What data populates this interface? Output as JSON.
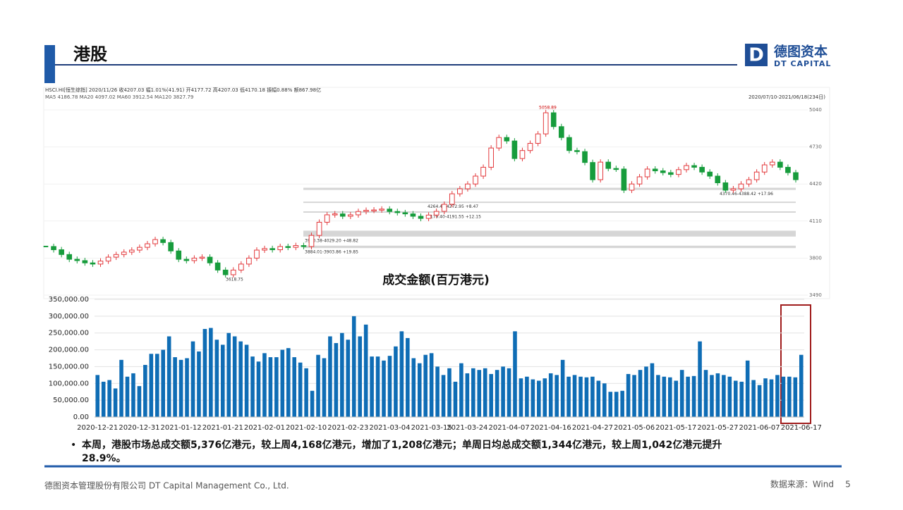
{
  "header": {
    "title": "港股",
    "logo_cn": "德图资本",
    "logo_en": "DT CAPITAL",
    "logo_mark": "D"
  },
  "chart_data": [
    {
      "type": "candlestick",
      "info_line": "HSCI.HI[恒生综指]  2020/11/26  收4207.03  幅1.01%(41.91)  开4177.72  高4207.03  低4170.18  振幅0.88%  额867.98亿",
      "ma_line": "MA5 4186.78  MA20 4097.02  MA60 3912.54  MA120 3827.79",
      "range_label": "2020/07/10-2021/06/18(234日)",
      "values": [
        3897,
        3870,
        3830,
        3790,
        3779,
        3760,
        3750,
        3775,
        3808,
        3830,
        3850,
        3867,
        3890,
        3920,
        3955,
        3930,
        3860,
        3790,
        3779,
        3800,
        3808,
        3760,
        3700,
        3661,
        3700,
        3750,
        3800,
        3867,
        3880,
        3870,
        3897,
        3890,
        3905,
        3897,
        3990,
        4100,
        4162,
        4170,
        4150,
        4162,
        4190,
        4200,
        4203,
        4210,
        4190,
        4180,
        4170,
        4150,
        4132,
        4160,
        4191,
        4250,
        4338,
        4380,
        4420,
        4486,
        4560,
        4721,
        4809,
        4780,
        4633,
        4700,
        4760,
        4839,
        5016,
        4900,
        4809,
        4700,
        4691,
        4600,
        4456,
        4603,
        4550,
        4545,
        4368,
        4420,
        4480,
        4545,
        4530,
        4515,
        4500,
        4540,
        4574,
        4560,
        4520,
        4486,
        4430,
        4368,
        4380,
        4420,
        4456,
        4520,
        4580,
        4603,
        4560,
        4515,
        4456
      ],
      "up_color": "#e3393c",
      "down_color": "#179c3c",
      "ylim": [
        3490,
        5040
      ],
      "yticks": [
        3490,
        3800,
        4110,
        4420,
        4730,
        5040
      ],
      "high_mark": 5058.89,
      "low_mark": 3618.75,
      "gaps": [
        {
          "low": 4264.48,
          "high": 4272.95,
          "label": "4264.48-4272.95  +8.47"
        },
        {
          "low": 4179.4,
          "high": 4191.55,
          "label": "4179.40-4191.55  +12.15"
        },
        {
          "low": 3980.38,
          "high": 4029.2,
          "label": "3980.38-4029.20  +48.82"
        },
        {
          "low": 3884.01,
          "high": 3903.86,
          "label": "3884.01-3903.86  +19.85"
        },
        {
          "low": 4370.46,
          "high": 4388.42,
          "label": "4370.46-4388.42  +17.96"
        }
      ]
    },
    {
      "type": "bar",
      "title": "成交金额(百万港元)",
      "color": "#0f6db5",
      "categories": [
        "2020-12-21",
        null,
        null,
        null,
        null,
        null,
        null,
        "2020-12-31",
        null,
        null,
        null,
        null,
        null,
        null,
        "2021-01-12",
        null,
        null,
        null,
        null,
        null,
        null,
        "2021-01-21",
        null,
        null,
        null,
        null,
        null,
        null,
        "2021-02-01",
        null,
        null,
        null,
        null,
        null,
        null,
        "2021-02-10",
        null,
        null,
        null,
        null,
        null,
        null,
        "2021-02-23",
        null,
        null,
        null,
        null,
        null,
        null,
        "2021-03-04",
        null,
        null,
        null,
        null,
        null,
        null,
        "2021-03-15",
        null,
        null,
        null,
        null,
        null,
        "2021-03-24",
        null,
        null,
        null,
        null,
        null,
        null,
        "2021-04-07",
        null,
        null,
        null,
        null,
        null,
        null,
        "2021-04-16",
        null,
        null,
        null,
        null,
        null,
        null,
        "2021-04-27",
        null,
        null,
        null,
        null,
        null,
        null,
        "2021-05-06",
        null,
        null,
        null,
        null,
        null,
        null,
        "2021-05-17",
        null,
        null,
        null,
        null,
        null,
        null,
        "2021-05-27",
        null,
        null,
        null,
        null,
        null,
        null,
        "2021-06-07",
        null,
        null,
        null,
        null,
        null,
        null,
        "2021-06-17"
      ],
      "values": [
        125000,
        105000,
        110000,
        85000,
        170000,
        120000,
        130000,
        92000,
        155000,
        188000,
        188000,
        200000,
        240000,
        178000,
        170000,
        175000,
        225000,
        195000,
        262000,
        265000,
        230000,
        215000,
        250000,
        240000,
        225000,
        215000,
        180000,
        165000,
        190000,
        178000,
        178000,
        200000,
        205000,
        178000,
        162000,
        145000,
        78000,
        185000,
        175000,
        240000,
        220000,
        250000,
        230000,
        300000,
        240000,
        275000,
        180000,
        180000,
        168000,
        182000,
        210000,
        255000,
        235000,
        175000,
        160000,
        185000,
        190000,
        150000,
        125000,
        145000,
        105000,
        160000,
        130000,
        145000,
        140000,
        145000,
        128000,
        140000,
        150000,
        145000,
        255000,
        115000,
        120000,
        112000,
        108000,
        115000,
        130000,
        125000,
        170000,
        120000,
        125000,
        120000,
        118000,
        120000,
        108000,
        100000,
        75000,
        75000,
        78000,
        128000,
        125000,
        140000,
        150000,
        160000,
        125000,
        120000,
        118000,
        108000,
        140000,
        120000,
        122000,
        225000,
        140000,
        125000,
        130000,
        125000,
        120000,
        108000,
        105000,
        168000,
        110000,
        95000,
        115000,
        112000,
        125000,
        120000,
        120000,
        118000,
        185000
      ],
      "ylim": [
        0,
        350000
      ],
      "yticks": [
        {
          "value": 0,
          "label": "0.00"
        },
        {
          "value": 50000,
          "label": "50,000.00"
        },
        {
          "value": 100000,
          "label": "100,000.00"
        },
        {
          "value": 150000,
          "label": "150,000.00"
        },
        {
          "value": 200000,
          "label": "200,000.00"
        },
        {
          "value": 250000,
          "label": "250,000.00"
        },
        {
          "value": 300000,
          "label": "300,000.00"
        },
        {
          "value": 350000,
          "label": "350,000.00"
        }
      ]
    }
  ],
  "bullet": [
    "本周，港股市场总成交额5,376亿港元，较上周4,168亿港元，增加了1,208亿港元；单周日均总成交额1,344亿港元，较上周1,042亿港元提升",
    "28.9%。"
  ],
  "footer": {
    "company": "德图资本管理股份有限公司  DT Capital  Management  Co., Ltd.",
    "source": "数据来源：Wind",
    "page": "5"
  }
}
